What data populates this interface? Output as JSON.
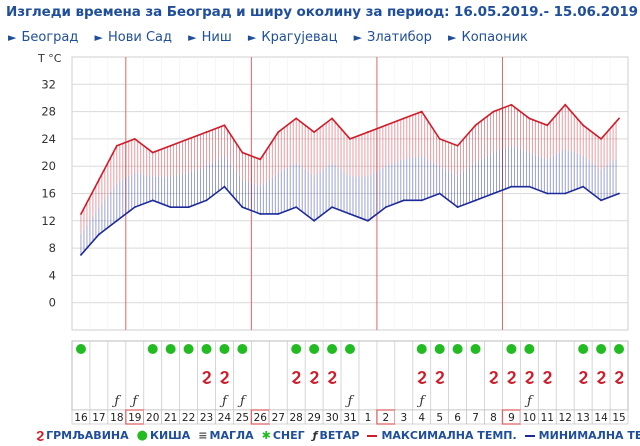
{
  "title": "Изгледи времена за Београд и ширу околину за период: 16.05.2019.- 15.06.2019",
  "nav": {
    "items": [
      {
        "label": "Београд"
      },
      {
        "label": "Нови Сад"
      },
      {
        "label": "Ниш"
      },
      {
        "label": "Крагујевац"
      },
      {
        "label": "Златибор"
      },
      {
        "label": "Копаоник"
      }
    ]
  },
  "legend": {
    "thunder": "ГРМЉАВИНА",
    "rain": "КИША",
    "fog": "МАГЛА",
    "snow": "СНЕГ",
    "wind": "ВЕТАР",
    "max": "МАКСИМАЛНА ТЕМП.",
    "min": "МИНИМАЛНА ТЕМП."
  },
  "colors": {
    "max": "#d01c2a",
    "min": "#1c2a9a",
    "grid": "#d9d9d9",
    "divider": "#e06666",
    "rain": "#22bb22",
    "text": "#1f4e9a"
  },
  "chart_data": {
    "type": "line",
    "ylabel": "T °C",
    "ylim": [
      -4,
      36
    ],
    "yticks": [
      0,
      4,
      8,
      12,
      16,
      20,
      24,
      28,
      32
    ],
    "categories": [
      "16",
      "17",
      "18",
      "19",
      "20",
      "21",
      "22",
      "23",
      "24",
      "25",
      "26",
      "27",
      "28",
      "29",
      "30",
      "31",
      "1",
      "2",
      "3",
      "4",
      "5",
      "6",
      "7",
      "8",
      "9",
      "10",
      "11",
      "12",
      "13",
      "14",
      "15"
    ],
    "highlighted_days": [
      "19",
      "26",
      "2",
      "9"
    ],
    "series": [
      {
        "name": "МАКСИМАЛНА ТЕМП.",
        "values": [
          13,
          18,
          23,
          24,
          22,
          23,
          24,
          25,
          26,
          22,
          21,
          25,
          27,
          25,
          27,
          24,
          25,
          26,
          27,
          28,
          24,
          23,
          26,
          28,
          29,
          27,
          26,
          29,
          26,
          24,
          27
        ]
      },
      {
        "name": "МИНИМАЛНА ТЕМП.",
        "values": [
          7,
          10,
          12,
          14,
          15,
          14,
          14,
          15,
          17,
          14,
          13,
          13,
          14,
          12,
          14,
          13,
          12,
          14,
          15,
          15,
          16,
          14,
          15,
          16,
          17,
          17,
          16,
          16,
          17,
          15,
          16
        ]
      }
    ],
    "phenomena": {
      "rain": [
        1,
        0,
        0,
        0,
        1,
        1,
        1,
        1,
        1,
        1,
        0,
        0,
        1,
        1,
        1,
        1,
        0,
        0,
        0,
        1,
        1,
        1,
        1,
        0,
        1,
        1,
        0,
        0,
        1,
        1,
        1
      ],
      "thunder": [
        0,
        0,
        0,
        0,
        0,
        0,
        0,
        1,
        1,
        0,
        0,
        0,
        1,
        1,
        1,
        0,
        0,
        0,
        0,
        1,
        1,
        0,
        0,
        1,
        1,
        1,
        1,
        0,
        1,
        1,
        1
      ],
      "wind": [
        0,
        0,
        1,
        1,
        0,
        0,
        0,
        0,
        1,
        1,
        0,
        0,
        0,
        0,
        0,
        1,
        0,
        0,
        0,
        1,
        0,
        0,
        0,
        0,
        0,
        1,
        0,
        0,
        0,
        0,
        0
      ]
    }
  }
}
